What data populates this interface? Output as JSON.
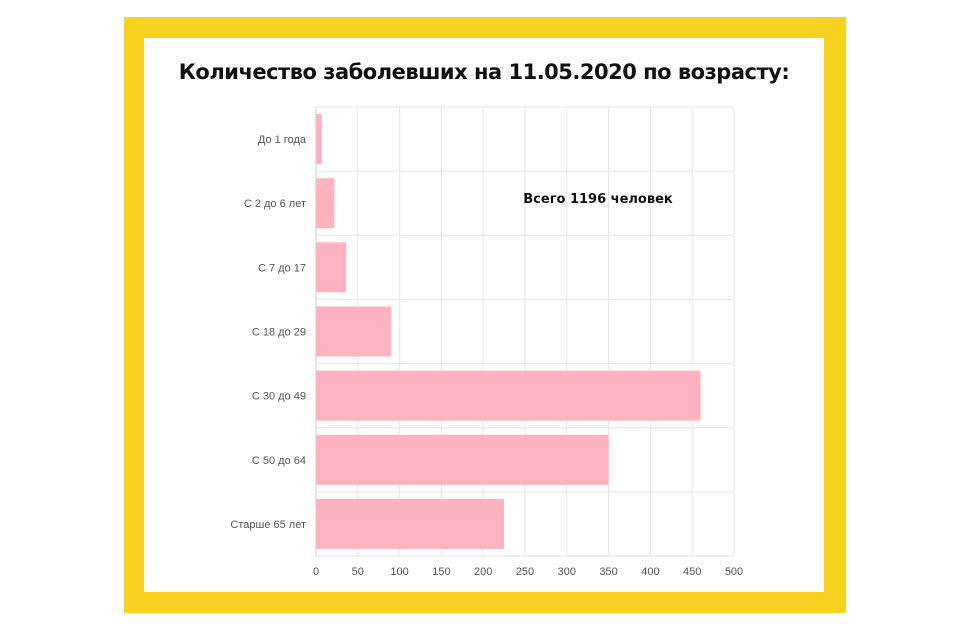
{
  "chart_data": {
    "type": "bar",
    "orientation": "horizontal",
    "title": "Количество заболевших на 11.05.2020 по возрасту:",
    "annotation": "Всего 1196 человек",
    "categories": [
      "До 1 года",
      "С 2 до 6 лет",
      "С 7 до 17",
      "С 18 до 29",
      "С 30 до 49",
      "С 50 до 64",
      "Старше 65 лет"
    ],
    "values": [
      7,
      22,
      36,
      90,
      460,
      350,
      225
    ],
    "xlim": [
      0,
      500
    ],
    "xticks": [
      "0",
      "50",
      "100",
      "150",
      "200",
      "250",
      "300",
      "350",
      "400",
      "450",
      "500"
    ],
    "grid": true,
    "bar_color": "#ffb3c1"
  },
  "colors": {
    "frame": "#f9d221",
    "grid": "#e6e6e6"
  }
}
